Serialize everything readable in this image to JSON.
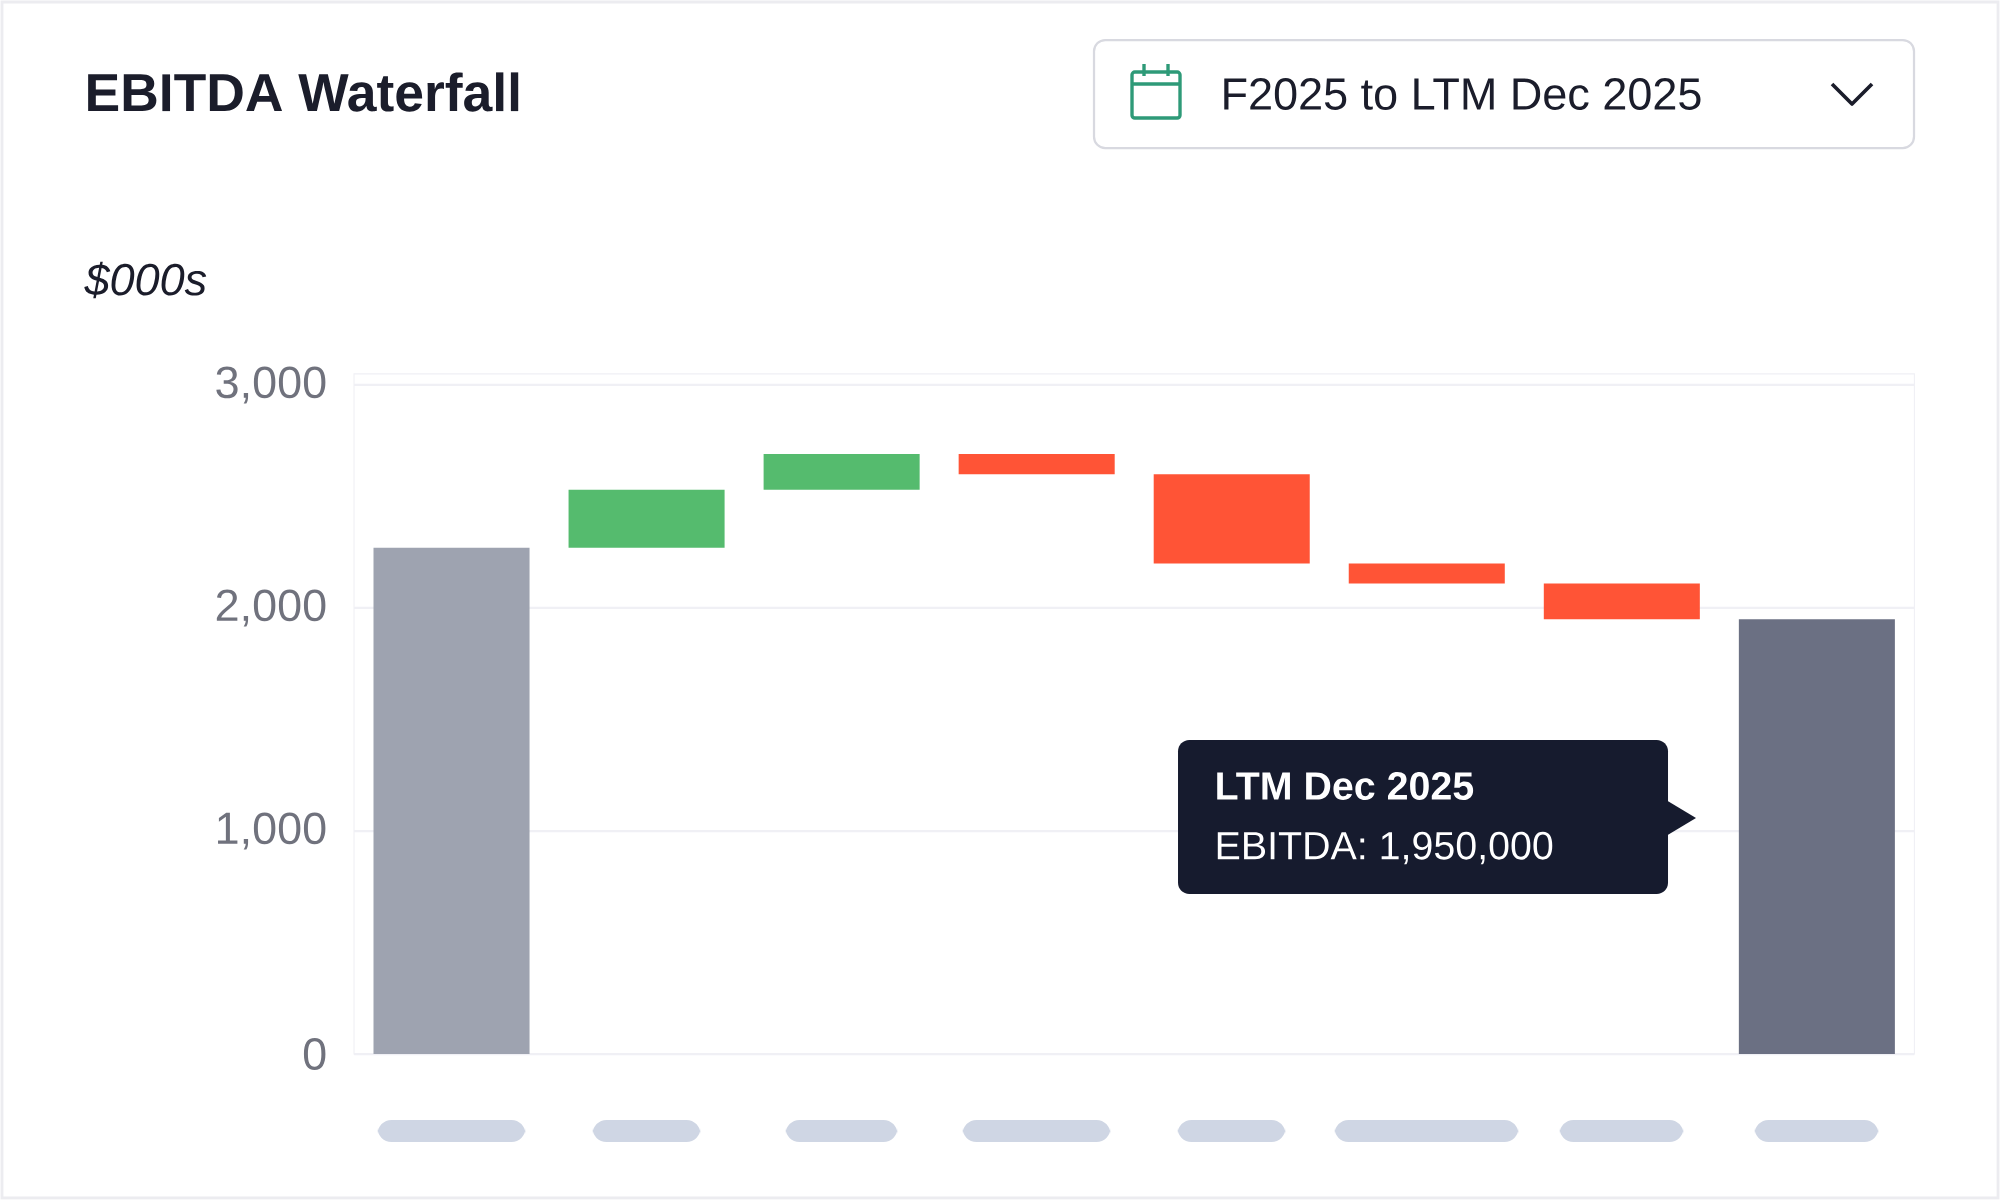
{
  "chart_data": {
    "type": "bar",
    "title": "EBITDA Waterfall",
    "subtitle": "F2025 to LTM Dec 2025",
    "categories": [
      null,
      null,
      null,
      null,
      null,
      null,
      null,
      null
    ],
    "values": [
      2270,
      260,
      160,
      -90,
      -400,
      -90,
      -160,
      1950
    ],
    "base": [
      0,
      2270,
      2530,
      2690,
      2600,
      2200,
      2110,
      0
    ],
    "colors": [
      "#9ea3b0",
      "#55bb6e",
      "#55bb6e",
      "#ff5436",
      "#ff5436",
      "#ff5436",
      "#ff5436",
      "#6b7083"
    ],
    "ylim": [
      0,
      3050
    ],
    "yticks": [
      {
        "value": 0,
        "label": "0"
      },
      {
        "value": 1000,
        "label": "1,000"
      },
      {
        "value": 2000,
        "label": "2,000"
      },
      {
        "value": 3000,
        "label": "3,000"
      }
    ],
    "grid": true,
    "annotations": [
      "$000s",
      "LTM Dec 2025",
      "EBITDA: 1,950,000"
    ]
  }
}
